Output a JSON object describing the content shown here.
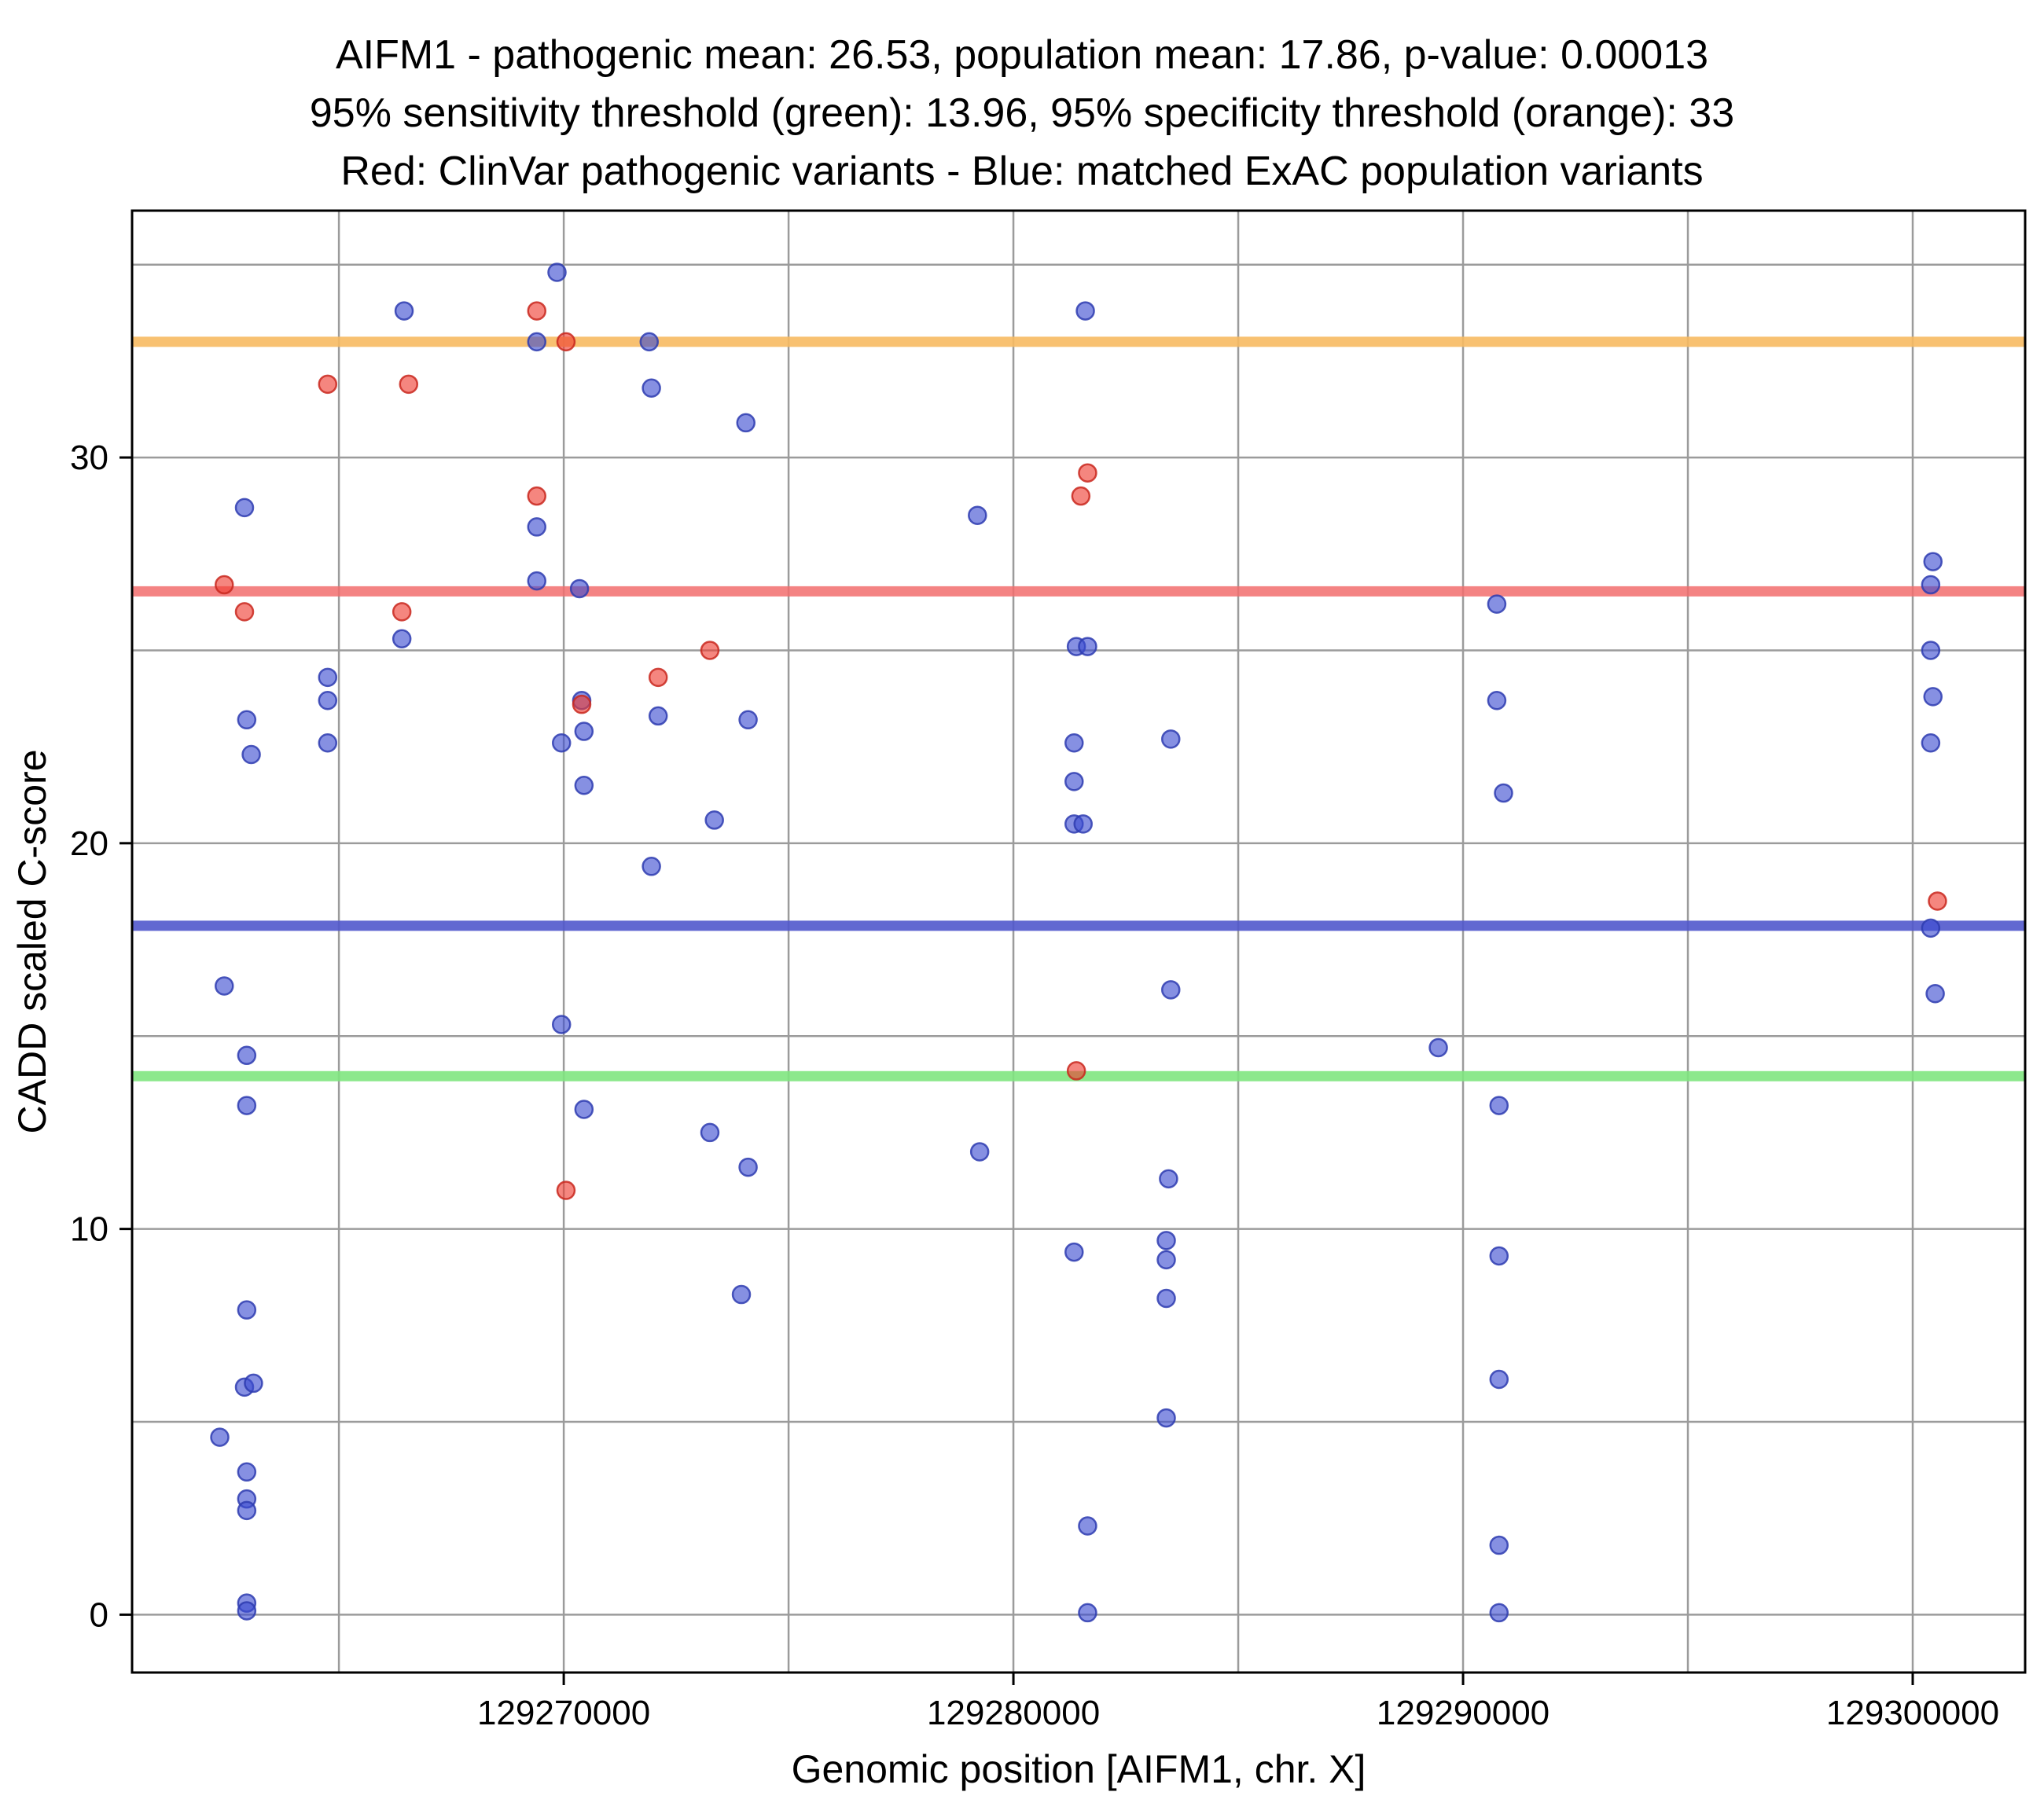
{
  "title": {
    "line1": "AIFM1 - pathogenic mean: 26.53, population mean: 17.86, p-value: 0.00013",
    "line2": "95% sensitivity threshold (green): 13.96, 95% specificity threshold (orange): 33",
    "line3": "Red: ClinVar pathogenic variants - Blue: matched ExAC population variants"
  },
  "chart_data": {
    "type": "scatter",
    "xlabel": "Genomic position [AIFM1, chr. X]",
    "ylabel": "CADD scaled C-score",
    "xlim": [
      129260400,
      129302500
    ],
    "ylim": [
      -1.5,
      36.4
    ],
    "x_ticks": [
      129270000,
      129280000,
      129290000,
      129300000
    ],
    "y_ticks": [
      0,
      10,
      20,
      30
    ],
    "x_grid_step": 5000,
    "y_grid_step": 5,
    "grid": true,
    "grid_color": "#9b9b9b",
    "thresholds": [
      {
        "name": "specificity-95",
        "value": 33,
        "color": "#F7BA62",
        "opacity": 0.9,
        "label": "95% specificity threshold (orange): 33"
      },
      {
        "name": "pathogenic-mean",
        "value": 26.53,
        "color": "#F26D6D",
        "opacity": 0.85,
        "label": "pathogenic mean: 26.53"
      },
      {
        "name": "population-mean",
        "value": 17.86,
        "color": "#5158CC",
        "opacity": 0.9,
        "label": "population mean: 17.86"
      },
      {
        "name": "sensitivity-95",
        "value": 13.96,
        "color": "#7FE57F",
        "opacity": 0.9,
        "label": "95% sensitivity threshold (green): 13.96"
      }
    ],
    "series": [
      {
        "name": "matched ExAC population variants",
        "color": "#3B4CD1",
        "stroke": "#2E3CB0",
        "points": [
          [
            129266450,
            33.8
          ],
          [
            129269850,
            34.8
          ],
          [
            129281600,
            33.8
          ],
          [
            129269400,
            33.0
          ],
          [
            129271900,
            33.0
          ],
          [
            129271950,
            31.8
          ],
          [
            129274050,
            30.9
          ],
          [
            129262900,
            28.7
          ],
          [
            129269400,
            28.2
          ],
          [
            129279200,
            28.5
          ],
          [
            129269400,
            26.8
          ],
          [
            129270350,
            26.6
          ],
          [
            129300450,
            27.3
          ],
          [
            129300400,
            26.7
          ],
          [
            129290750,
            26.2
          ],
          [
            129264750,
            24.3
          ],
          [
            129264750,
            23.7
          ],
          [
            129266400,
            25.3
          ],
          [
            129262950,
            23.2
          ],
          [
            129263050,
            22.3
          ],
          [
            129264750,
            22.6
          ],
          [
            129270400,
            23.7
          ],
          [
            129269950,
            22.6
          ],
          [
            129270450,
            22.9
          ],
          [
            129270450,
            21.5
          ],
          [
            129272100,
            23.3
          ],
          [
            129274100,
            23.2
          ],
          [
            129273350,
            20.6
          ],
          [
            129271950,
            19.4
          ],
          [
            129281400,
            25.1
          ],
          [
            129281650,
            25.1
          ],
          [
            129281350,
            22.6
          ],
          [
            129281350,
            21.6
          ],
          [
            129281350,
            20.5
          ],
          [
            129281550,
            20.5
          ],
          [
            129283500,
            22.7
          ],
          [
            129290750,
            23.7
          ],
          [
            129290900,
            21.3
          ],
          [
            129300400,
            25.0
          ],
          [
            129300450,
            23.8
          ],
          [
            129300400,
            22.6
          ],
          [
            129262450,
            16.3
          ],
          [
            129262950,
            14.5
          ],
          [
            129262950,
            13.2
          ],
          [
            129269950,
            15.3
          ],
          [
            129270450,
            13.1
          ],
          [
            129273250,
            12.5
          ],
          [
            129274100,
            11.6
          ],
          [
            129279250,
            12.0
          ],
          [
            129283500,
            16.2
          ],
          [
            129283450,
            11.3
          ],
          [
            129289450,
            14.7
          ],
          [
            129300400,
            17.8
          ],
          [
            129300500,
            16.1
          ],
          [
            129281350,
            9.4
          ],
          [
            129283400,
            9.7
          ],
          [
            129283400,
            9.2
          ],
          [
            129283400,
            8.2
          ],
          [
            129273950,
            8.3
          ],
          [
            129290800,
            9.3
          ],
          [
            129290800,
            13.2
          ],
          [
            129262950,
            7.9
          ],
          [
            129262900,
            5.9
          ],
          [
            129263100,
            6.0
          ],
          [
            129290800,
            6.1
          ],
          [
            129283400,
            5.1
          ],
          [
            129262350,
            4.6
          ],
          [
            129262950,
            3.7
          ],
          [
            129262950,
            3.0
          ],
          [
            129262950,
            2.7
          ],
          [
            129281650,
            2.3
          ],
          [
            129290800,
            1.8
          ],
          [
            129262950,
            0.3
          ],
          [
            129262950,
            0.1
          ],
          [
            129281650,
            0.05
          ],
          [
            129290800,
            0.05
          ]
        ]
      },
      {
        "name": "ClinVar pathogenic variants",
        "color": "#EF3B30",
        "stroke": "#C9281E",
        "points": [
          [
            129262450,
            26.7
          ],
          [
            129262900,
            26.0
          ],
          [
            129264750,
            31.9
          ],
          [
            129266550,
            31.9
          ],
          [
            129269400,
            33.8
          ],
          [
            129270050,
            33.0
          ],
          [
            129269400,
            29.0
          ],
          [
            129266400,
            26.0
          ],
          [
            129273250,
            25.0
          ],
          [
            129272100,
            24.3
          ],
          [
            129270400,
            23.6
          ],
          [
            129281500,
            29.0
          ],
          [
            129281650,
            29.6
          ],
          [
            129281400,
            14.1
          ],
          [
            129270050,
            11.0
          ],
          [
            129300550,
            18.5
          ]
        ]
      }
    ]
  }
}
